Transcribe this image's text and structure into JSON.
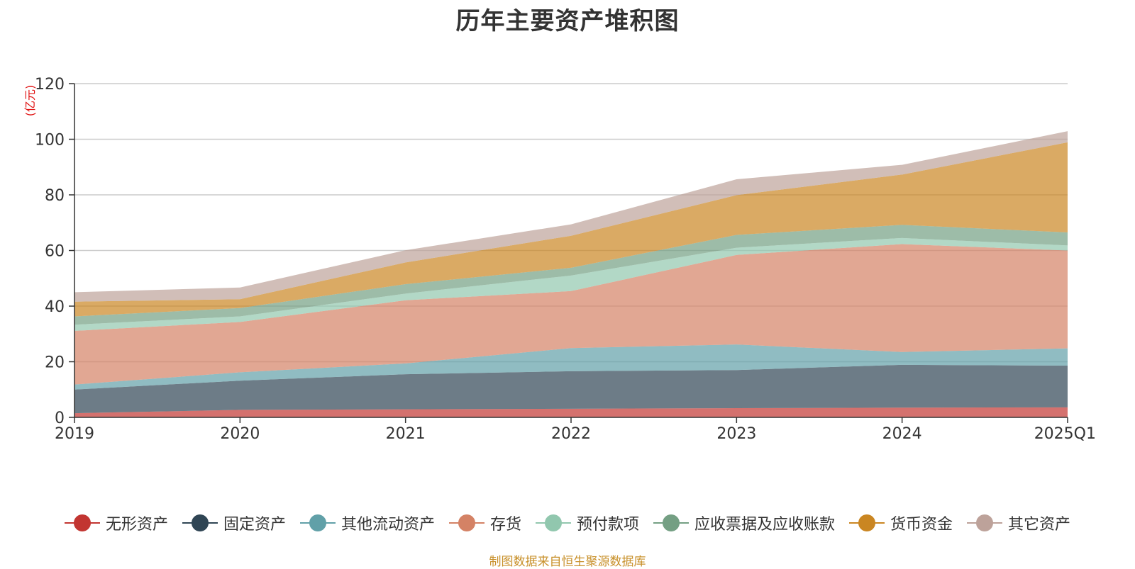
{
  "chart_data": {
    "type": "area",
    "stacked": true,
    "title": "历年主要资产堆积图",
    "ylabel": "(亿元)",
    "xlabel": "",
    "categories": [
      "2019",
      "2020",
      "2021",
      "2022",
      "2023",
      "2024",
      "2025Q1"
    ],
    "ylim": [
      0,
      120
    ],
    "yticks": [
      0,
      20,
      40,
      60,
      80,
      100,
      120
    ],
    "grid": true,
    "legend_position": "bottom",
    "series": [
      {
        "name": "无形资产",
        "color": "#c23531",
        "values": [
          1.5,
          2.7,
          2.9,
          3.1,
          3.3,
          3.5,
          3.6
        ]
      },
      {
        "name": "固定资产",
        "color": "#2f4554",
        "values": [
          8.5,
          10.5,
          12.6,
          13.5,
          13.7,
          15.4,
          15.0
        ]
      },
      {
        "name": "其他流动资产",
        "color": "#61a0a8",
        "values": [
          1.8,
          3.0,
          3.9,
          8.3,
          9.2,
          4.6,
          6.2
        ]
      },
      {
        "name": "存货",
        "color": "#d48265",
        "values": [
          19.3,
          18.1,
          22.7,
          20.5,
          32.2,
          38.8,
          35.2
        ]
      },
      {
        "name": "预付款项",
        "color": "#91c7ae",
        "values": [
          2.2,
          2.0,
          2.4,
          5.6,
          2.6,
          2.2,
          1.8
        ]
      },
      {
        "name": "应收票据及应收账款",
        "color": "#749f83",
        "values": [
          3.0,
          3.0,
          3.4,
          2.8,
          4.6,
          4.7,
          4.7
        ]
      },
      {
        "name": "货币资金",
        "color": "#ca8622",
        "values": [
          5.3,
          3.2,
          7.8,
          11.5,
          14.3,
          18.1,
          32.4
        ]
      },
      {
        "name": "其它资产",
        "color": "#bda29a",
        "values": [
          3.4,
          4.2,
          4.4,
          4.1,
          5.7,
          3.5,
          4.0
        ]
      }
    ],
    "source_note": "制图数据来自恒生聚源数据库"
  }
}
